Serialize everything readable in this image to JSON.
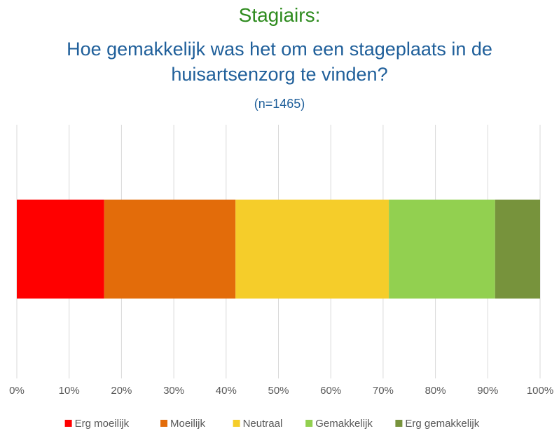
{
  "chart_data": {
    "type": "stacked_barh",
    "title": "Stagiairs:",
    "subtitle": "Hoe gemakkelijk was het om een stageplaats in de huisartsenzorg te vinden?",
    "note": "(n=1465)",
    "categories": [
      null
    ],
    "series": [
      {
        "name": "Erg moeilijk",
        "color": "#ff0000",
        "values": [
          16.7
        ]
      },
      {
        "name": "Moeilijk",
        "color": "#e36c0a",
        "values": [
          25.1
        ]
      },
      {
        "name": "Neutraal",
        "color": "#f5cd2a",
        "values": [
          29.3
        ]
      },
      {
        "name": "Gemakkelijk",
        "color": "#92d050",
        "values": [
          20.3
        ]
      },
      {
        "name": "Erg gemakkelijk",
        "color": "#77933c",
        "values": [
          8.6
        ]
      }
    ],
    "xlim": [
      0,
      100
    ],
    "xticks": [
      {
        "value": 0,
        "label": "0%"
      },
      {
        "value": 10,
        "label": "10%"
      },
      {
        "value": 20,
        "label": "20%"
      },
      {
        "value": 30,
        "label": "30%"
      },
      {
        "value": 40,
        "label": "40%"
      },
      {
        "value": 50,
        "label": "50%"
      },
      {
        "value": 60,
        "label": "60%"
      },
      {
        "value": 70,
        "label": "70%"
      },
      {
        "value": 80,
        "label": "80%"
      },
      {
        "value": 90,
        "label": "90%"
      },
      {
        "value": 100,
        "label": "100%"
      }
    ],
    "grid": true,
    "legend": "bottom"
  }
}
